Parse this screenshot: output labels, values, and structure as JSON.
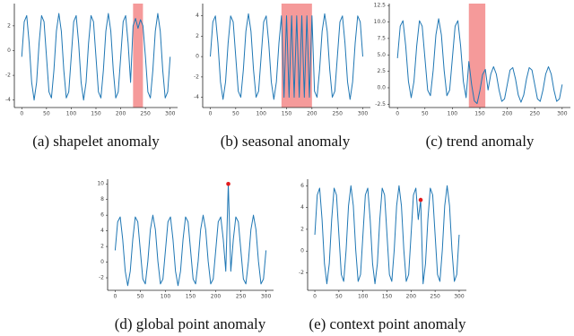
{
  "chart_data": [
    {
      "type": "line",
      "caption": "(a)  shapelet anomaly",
      "x": [
        0,
        5,
        10,
        15,
        20,
        25,
        30,
        35,
        40,
        45,
        50,
        55,
        60,
        65,
        70,
        75,
        80,
        85,
        90,
        95,
        100,
        105,
        110,
        115,
        120,
        125,
        130,
        135,
        140,
        145,
        150,
        155,
        160,
        165,
        170,
        175,
        180,
        185,
        190,
        195,
        200,
        205,
        210,
        215,
        220,
        225,
        230,
        235,
        240,
        245,
        250,
        255,
        260,
        265,
        270,
        275,
        280,
        285,
        290,
        295,
        300
      ],
      "series": [
        {
          "color": "#1f77b4",
          "values": [
            -0.5,
            2.34,
            2.83,
            0.59,
            -2.57,
            -4,
            -2.57,
            0.59,
            2.83,
            2.34,
            -0.5,
            -3.34,
            -3.83,
            -1.59,
            1.57,
            3,
            1.57,
            -1.59,
            -3.83,
            -3.34,
            -0.5,
            2.34,
            2.83,
            0.59,
            -2.57,
            -4,
            -2.57,
            0.59,
            2.83,
            2.34,
            -0.5,
            -3.34,
            -3.83,
            -1.59,
            1.57,
            3,
            1.57,
            -1.59,
            -3.83,
            -3.34,
            -0.5,
            2.34,
            2.83,
            0.59,
            -2.57,
            2.0,
            2.6,
            1.8,
            2.5,
            2.0,
            -0.5,
            -3.34,
            -3.83,
            -1.59,
            1.57,
            3,
            1.57,
            -1.59,
            -3.83,
            -3.34,
            -0.5
          ]
        }
      ],
      "span": [
        225,
        245
      ],
      "span_color": "#f59a9a",
      "xlim": [
        -15,
        315
      ],
      "xticks": [
        0,
        50,
        100,
        150,
        200,
        250,
        300
      ],
      "ylim": [
        -4.6,
        3.8
      ],
      "yticks": [
        -4,
        -2,
        0,
        2
      ]
    },
    {
      "type": "line",
      "caption": "(b)  seasonal anomaly",
      "x": [
        0,
        5,
        10,
        15,
        20,
        25,
        30,
        35,
        40,
        45,
        50,
        55,
        60,
        65,
        70,
        75,
        80,
        85,
        90,
        95,
        100,
        105,
        110,
        115,
        120,
        125,
        130,
        135,
        140,
        145,
        150,
        155,
        160,
        165,
        170,
        175,
        180,
        185,
        190,
        195,
        200,
        205,
        210,
        215,
        220,
        225,
        230,
        235,
        240,
        245,
        250,
        255,
        260,
        265,
        270,
        275,
        280,
        285,
        290,
        295,
        300
      ],
      "series": [
        {
          "color": "#1f77b4",
          "values": [
            0,
            3.4,
            3.99,
            1.3,
            -2.48,
            -4.2,
            -2.48,
            1.3,
            3.99,
            3.4,
            0,
            -3.4,
            -3.99,
            -1.3,
            2.48,
            4.2,
            2.48,
            -1.3,
            -3.99,
            -3.4,
            0,
            3.4,
            3.99,
            1.3,
            -2.48,
            -4.2,
            -2.48,
            1.3,
            4,
            -4,
            4,
            -4,
            4,
            -4,
            4,
            -4,
            4,
            -4,
            4,
            -4,
            4,
            -3.4,
            -3.99,
            -1.3,
            2.48,
            4.2,
            2.48,
            -1.3,
            -3.99,
            -3.4,
            0,
            3.4,
            3.99,
            1.3,
            -2.48,
            -4.2,
            -2.48,
            1.3,
            3.99,
            3.4,
            0
          ]
        }
      ],
      "span": [
        140,
        200
      ],
      "span_color": "#f59a9a",
      "xlim": [
        -15,
        315
      ],
      "xticks": [
        0,
        50,
        100,
        150,
        200,
        250,
        300
      ],
      "ylim": [
        -5,
        5.2
      ],
      "yticks": [
        -4,
        -2,
        0,
        2,
        4
      ]
    },
    {
      "type": "line",
      "caption": "(c)  trend anomaly",
      "x": [
        0,
        5,
        10,
        15,
        20,
        25,
        30,
        35,
        40,
        45,
        50,
        55,
        60,
        65,
        70,
        75,
        80,
        85,
        90,
        95,
        100,
        105,
        110,
        115,
        120,
        125,
        130,
        135,
        140,
        145,
        150,
        155,
        160,
        165,
        170,
        175,
        180,
        185,
        190,
        195,
        200,
        205,
        210,
        215,
        220,
        225,
        230,
        235,
        240,
        245,
        250,
        255,
        260,
        265,
        270,
        275,
        280,
        285,
        290,
        295,
        300
      ],
      "series": [
        {
          "color": "#1f77b4",
          "values": [
            4.5,
            9.36,
            10.2,
            6.36,
            0.96,
            -1.5,
            0.96,
            6.36,
            10.2,
            9.36,
            4.5,
            -0.36,
            -1.2,
            2.64,
            8.04,
            10.5,
            8.04,
            2.64,
            -1.2,
            -0.36,
            4.5,
            9.36,
            10.2,
            6.36,
            0.96,
            -1.5,
            4.0,
            0.5,
            -2.0,
            -2.4,
            -0.5,
            2.0,
            2.8,
            -0.34,
            2.09,
            3.2,
            2.09,
            -0.34,
            -2.07,
            -1.69,
            0.5,
            2.69,
            3.07,
            1.34,
            -1.09,
            -2.2,
            -1.09,
            1.34,
            3.07,
            2.69,
            0.5,
            -1.69,
            -2.07,
            -0.34,
            2.09,
            3.2,
            2.09,
            -0.34,
            -2.07,
            -1.69,
            0.5
          ]
        }
      ],
      "span": [
        130,
        160
      ],
      "span_color": "#f59a9a",
      "xlim": [
        -15,
        315
      ],
      "xticks": [
        0,
        50,
        100,
        150,
        200,
        250,
        300
      ],
      "ylim": [
        -3,
        12.8
      ],
      "yticks": [
        {
          "value": -2.5,
          "label": "-2.5"
        },
        {
          "value": 0,
          "label": "0.0"
        },
        {
          "value": 2.5,
          "label": "2.5"
        },
        {
          "value": 5,
          "label": "5.0"
        },
        {
          "value": 7.5,
          "label": "7.5"
        },
        {
          "value": 10,
          "label": "10.0"
        },
        {
          "value": 12.5,
          "label": "12.5"
        }
      ]
    },
    {
      "type": "line",
      "caption": "(d)  global point anomaly",
      "x": [
        0,
        5,
        10,
        15,
        20,
        25,
        30,
        35,
        40,
        45,
        50,
        55,
        60,
        65,
        70,
        75,
        80,
        85,
        90,
        95,
        100,
        105,
        110,
        115,
        120,
        125,
        130,
        135,
        140,
        145,
        150,
        155,
        160,
        165,
        170,
        175,
        180,
        185,
        190,
        195,
        200,
        205,
        210,
        215,
        220,
        225,
        230,
        235,
        240,
        245,
        250,
        255,
        260,
        265,
        270,
        275,
        280,
        285,
        290,
        295,
        300
      ],
      "series": [
        {
          "color": "#1f77b4",
          "values": [
            1.5,
            5.15,
            5.78,
            2.9,
            -1.16,
            -3,
            -1.16,
            2.9,
            5.78,
            5.15,
            1.5,
            -2.15,
            -2.78,
            0.1,
            4.16,
            6,
            4.16,
            0.1,
            -2.78,
            -2.15,
            1.5,
            5.15,
            5.78,
            2.9,
            -1.16,
            -3,
            -1.16,
            2.9,
            5.78,
            5.15,
            1.5,
            -2.15,
            -2.78,
            0.1,
            4.16,
            6,
            4.16,
            0.1,
            -2.78,
            -2.15,
            1.5,
            5.15,
            5.78,
            2.9,
            -1.16,
            10,
            -1.16,
            2.9,
            5.78,
            5.15,
            1.5,
            -2.15,
            -2.78,
            0.1,
            4.16,
            6,
            4.16,
            0.1,
            -2.78,
            -2.15,
            1.5
          ]
        },
        {
          "type": "scatter",
          "color": "#e31a1c",
          "x": [
            225
          ],
          "values": [
            10
          ]
        }
      ],
      "xlim": [
        -15,
        315
      ],
      "xticks": [
        0,
        50,
        100,
        150,
        200,
        250,
        300
      ],
      "ylim": [
        -3.6,
        10.6
      ],
      "yticks": [
        -2,
        0,
        2,
        4,
        6,
        8,
        10
      ]
    },
    {
      "type": "line",
      "caption": "(e)  context point anomaly",
      "x": [
        0,
        5,
        10,
        15,
        20,
        25,
        30,
        35,
        40,
        45,
        50,
        55,
        60,
        65,
        70,
        75,
        80,
        85,
        90,
        95,
        100,
        105,
        110,
        115,
        120,
        125,
        130,
        135,
        140,
        145,
        150,
        155,
        160,
        165,
        170,
        175,
        180,
        185,
        190,
        195,
        200,
        205,
        210,
        215,
        220,
        225,
        230,
        235,
        240,
        245,
        250,
        255,
        260,
        265,
        270,
        275,
        280,
        285,
        290,
        295,
        300
      ],
      "series": [
        {
          "color": "#1f77b4",
          "values": [
            1.5,
            5.15,
            5.78,
            2.9,
            -1.16,
            -3,
            -1.16,
            2.9,
            5.78,
            5.15,
            1.5,
            -2.15,
            -2.78,
            0.1,
            4.16,
            6,
            4.16,
            0.1,
            -2.78,
            -2.15,
            1.5,
            5.15,
            5.78,
            2.9,
            -1.16,
            -3,
            -1.16,
            2.9,
            5.78,
            5.15,
            1.5,
            -2.15,
            -2.78,
            0.1,
            4.16,
            6,
            4.16,
            0.1,
            -2.78,
            -2.15,
            1.5,
            5.15,
            5.78,
            2.9,
            4.7,
            -3,
            -1.16,
            2.9,
            5.78,
            5.15,
            1.5,
            -2.15,
            -2.78,
            0.1,
            4.16,
            6,
            4.16,
            0.1,
            -2.78,
            -2.15,
            1.5
          ]
        },
        {
          "type": "scatter",
          "color": "#e31a1c",
          "x": [
            220
          ],
          "values": [
            4.7
          ]
        }
      ],
      "xlim": [
        -15,
        315
      ],
      "xticks": [
        0,
        50,
        100,
        150,
        200,
        250,
        300
      ],
      "ylim": [
        -3.6,
        6.6
      ],
      "yticks": [
        -2,
        0,
        2,
        4,
        6
      ]
    }
  ]
}
